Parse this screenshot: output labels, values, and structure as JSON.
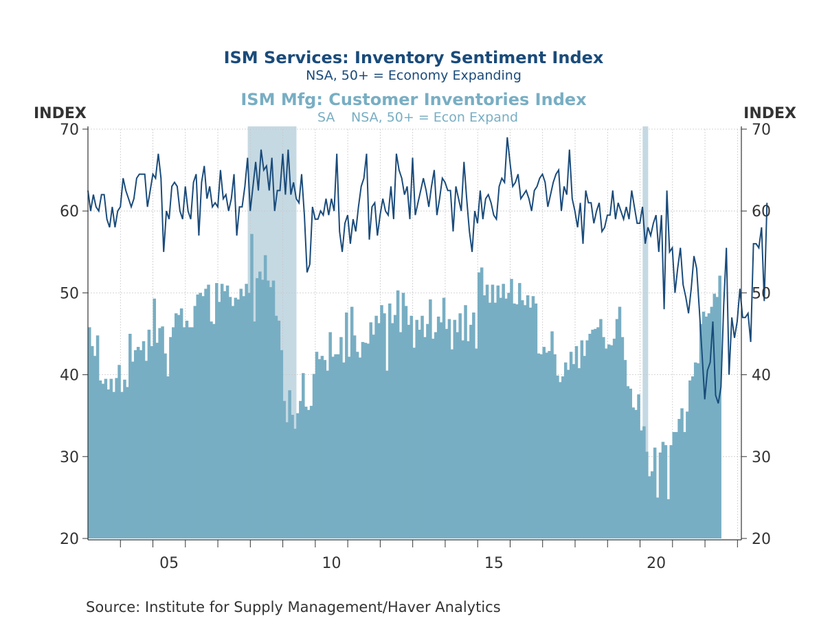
{
  "colors": {
    "services": "#1a4b7a",
    "mfg": "#78aec3",
    "recession": "#c5d9e3",
    "axis": "#333333",
    "grid": "#c8c8c8",
    "text": "#333333"
  },
  "source": "Source:  Institute for Supply Management/Haver Analytics",
  "chart_data": {
    "type": "bar+line",
    "title": "ISM Services: Inventory Sentiment Index",
    "subtitle": "NSA, 50+ = Economy Expanding",
    "title2": "ISM Mfg: Customer Inventories Index",
    "subtitle2_sa": "SA",
    "subtitle2": "NSA, 50+ = Econ Expand",
    "ylabel_left": "INDEX",
    "ylabel_right": "INDEX",
    "ylim": [
      20,
      70
    ],
    "yticks": [
      20,
      30,
      40,
      50,
      60,
      70
    ],
    "xlim": [
      2003.0,
      2023.12
    ],
    "xticks": [
      {
        "x": 2005,
        "label": "05"
      },
      {
        "x": 2010,
        "label": "10"
      },
      {
        "x": 2015,
        "label": "15"
      },
      {
        "x": 2020,
        "label": "20"
      }
    ],
    "grid": true,
    "recessions": [
      [
        2007.92,
        2009.42
      ],
      [
        2020.08,
        2020.25
      ]
    ],
    "series": [
      {
        "name": "ISM Services: Inventory Sentiment Index",
        "kind": "line",
        "start": 2003.0,
        "step": 0.0833,
        "values": [
          62.5,
          60,
          62,
          60.5,
          60,
          62,
          62,
          59,
          58,
          60.5,
          58,
          60,
          60.5,
          64,
          62.5,
          61.5,
          60.5,
          61.5,
          64,
          64.5,
          64.5,
          64.5,
          60.5,
          62.5,
          64.5,
          64,
          67,
          64,
          55,
          60,
          59,
          63,
          63.5,
          63,
          60,
          59,
          63,
          60,
          59,
          63.5,
          64.5,
          57,
          63.5,
          65.5,
          61.5,
          63,
          60.5,
          61,
          60.5,
          65,
          61.5,
          62,
          60,
          61.5,
          64.5,
          57,
          60.5,
          60.5,
          63,
          66.5,
          60,
          63,
          66,
          62.5,
          67.5,
          65,
          65.5,
          62.5,
          66.5,
          60,
          62.5,
          62.5,
          67,
          62,
          67.5,
          62,
          63.5,
          61.5,
          61,
          64.5,
          59.5,
          52.5,
          53.5,
          60.5,
          59,
          59,
          60,
          59.5,
          61.5,
          59.5,
          61.5,
          60,
          67,
          57.5,
          55,
          58.5,
          59.5,
          56,
          59,
          57.5,
          60.5,
          63,
          64,
          67,
          56.5,
          60.5,
          61,
          57,
          59.5,
          61.5,
          60,
          59.5,
          63,
          59,
          67,
          65,
          64,
          62,
          63,
          59,
          66.5,
          59.5,
          61,
          62.5,
          64,
          62.5,
          60.5,
          63,
          65,
          59.5,
          61.5,
          64,
          63.5,
          62.5,
          62.5,
          57.5,
          63,
          61.5,
          60,
          66,
          61.5,
          57.5,
          55,
          60,
          58.5,
          62.5,
          59,
          61.5,
          62,
          61,
          59.5,
          59,
          63,
          64,
          63.5,
          69,
          66,
          63,
          63.5,
          64.5,
          61.5,
          62,
          62.5,
          61.5,
          60,
          62.5,
          63,
          64,
          64.5,
          63.5,
          60.5,
          62,
          63.5,
          64.5,
          65,
          60,
          63,
          62,
          67.5,
          61.5,
          60,
          58,
          61,
          56,
          62.5,
          61,
          61,
          58.5,
          60,
          61,
          57.5,
          58,
          59.5,
          59.5,
          62.5,
          59,
          61,
          60,
          59,
          60.5,
          59,
          62.5,
          60.5,
          58.5,
          58.5,
          60.5,
          56,
          58,
          57,
          58.5,
          59.5,
          55,
          59.5,
          48,
          62.5,
          55,
          55.5,
          50,
          53,
          55.5,
          51,
          49.5,
          47.5,
          50.5,
          54.5,
          53,
          48,
          42.5,
          37,
          40.5,
          41.5,
          46.5,
          37.5,
          36.5,
          38.5,
          48.5,
          55.5,
          40,
          47,
          44.5,
          46.5,
          50.5,
          47,
          47,
          47.5,
          44,
          56,
          56,
          55.5,
          58,
          49,
          61
        ]
      },
      {
        "name": "ISM Mfg: Customer Inventories Index",
        "kind": "bar",
        "start": 2003.0,
        "step": 0.0833,
        "values": [
          45.8,
          43.5,
          42.3,
          44.8,
          39.3,
          38.9,
          39.5,
          38.2,
          39.5,
          37.9,
          39.6,
          41.2,
          37.9,
          39.4,
          38.5,
          45,
          41.6,
          43,
          43.4,
          43,
          44.1,
          41.7,
          45.5,
          43.5,
          49.3,
          43.9,
          45.7,
          45.9,
          42.6,
          39.8,
          44.6,
          45.8,
          47.5,
          47.3,
          48.1,
          45.8,
          46.6,
          45.8,
          45.8,
          48.4,
          49.8,
          50,
          49.6,
          50.5,
          51,
          46.5,
          46.2,
          51.2,
          48.9,
          51.1,
          50.2,
          50.9,
          49.5,
          48.4,
          49.4,
          49.2,
          50.5,
          49.6,
          51.1,
          50,
          57.2,
          46.5,
          51.8,
          52.6,
          51.6,
          54.6,
          51.5,
          50.7,
          51.5,
          47.2,
          46.6,
          43,
          36.8,
          34.2,
          38.1,
          35.1,
          33.4,
          35.3,
          36.8,
          40.2,
          36.1,
          35.7,
          36.2,
          40.1,
          42.8,
          41.9,
          42.3,
          41.8,
          40.5,
          45.2,
          42.2,
          42.5,
          42.5,
          44.6,
          41.5,
          47.6,
          42.2,
          48.3,
          44.8,
          42.8,
          42.1,
          44,
          43.9,
          43.8,
          46.4,
          44.9,
          47.2,
          46.3,
          48.5,
          47.5,
          40.5,
          48.7,
          46.3,
          47.3,
          50.3,
          45.2,
          50,
          48.4,
          46.1,
          47.2,
          43.3,
          46.7,
          45.5,
          47.2,
          44.6,
          46.2,
          49.2,
          44.4,
          45.2,
          47.1,
          46.4,
          49.4,
          45.6,
          46.8,
          43.1,
          46.7,
          45.2,
          47.5,
          44.2,
          48.5,
          44.1,
          46.1,
          47.6,
          43.2,
          52.5,
          53.1,
          49.7,
          51,
          48.8,
          51,
          48.8,
          50.9,
          49.4,
          51.1,
          49.3,
          50,
          51.7,
          48.7,
          48.6,
          51.2,
          49.1,
          48.5,
          49.7,
          48.2,
          49.6,
          48.7,
          42.6,
          42.5,
          43.4,
          42.7,
          42.9,
          45.3,
          42.5,
          39.9,
          39.1,
          39.8,
          41.5,
          40.6,
          42.8,
          41.3,
          43.5,
          40.8,
          44.2,
          42.3,
          44.2,
          45,
          45.5,
          45.6,
          45.8,
          46.8,
          44.6,
          43.2,
          43.7,
          43.6,
          44.4,
          46.8,
          48.3,
          44.6,
          41.8,
          38.6,
          38.3,
          36,
          35.7,
          37.6,
          33.2,
          33.7,
          30.6,
          27.6,
          28.2,
          31.1,
          25,
          30.5,
          31.8,
          31.4,
          24.8,
          31.4,
          33,
          33,
          34.6,
          35.9,
          33,
          35.5,
          39.3,
          39.8,
          41.5,
          41.4,
          46.2,
          47.7,
          47.1,
          47.5,
          48.3,
          49.9,
          49.5,
          52.1
        ]
      }
    ]
  }
}
